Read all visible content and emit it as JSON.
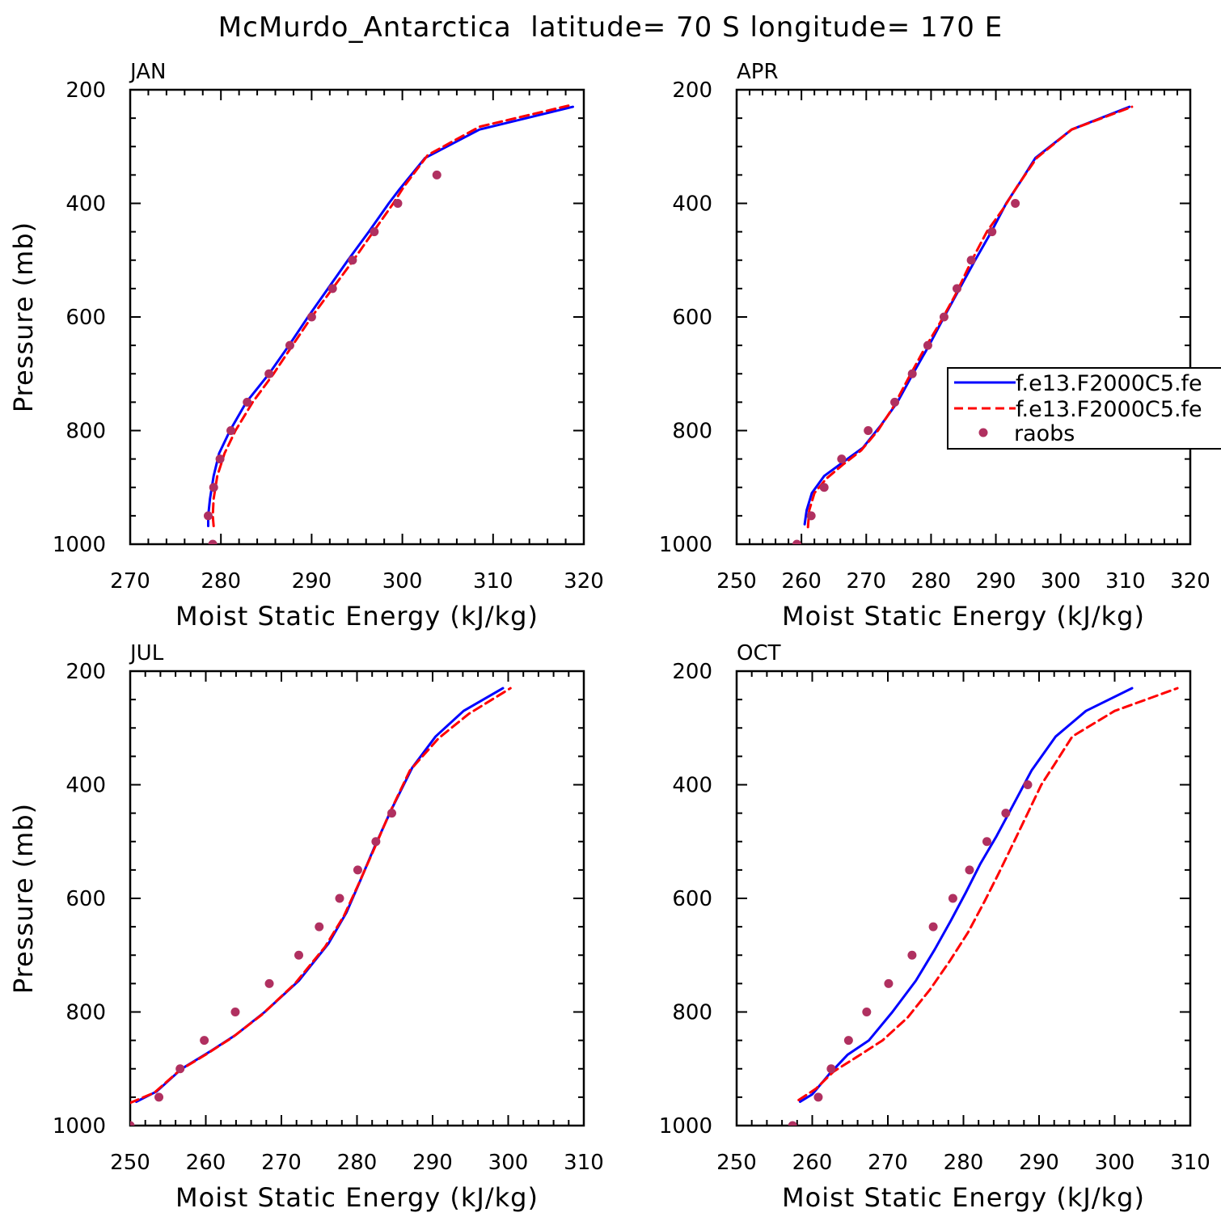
{
  "title": "McMurdo_Antarctica  latitude= 70 S longitude= 170 E",
  "colors": {
    "series1": "#0000ff",
    "series2": "#ff0000",
    "obs": "#b03060",
    "axis": "#000000"
  },
  "legend": {
    "entries": [
      "f.e13.F2000C5.fe",
      "f.e13.F2000C5.fe",
      "raobs"
    ]
  },
  "chart_data": [
    {
      "type": "line",
      "panel": "JAN",
      "xlabel": "Moist Static Energy (kJ/kg)",
      "ylabel": "Pressure (mb)",
      "xlim": [
        270,
        320
      ],
      "ylim": [
        1000,
        200
      ],
      "xticks": [
        270,
        280,
        290,
        300,
        310,
        320
      ],
      "yticks": [
        200,
        400,
        600,
        800,
        1000
      ],
      "series": [
        {
          "name": "f.e13.F2000C5.fe (blue)",
          "style": "solid",
          "points": [
            [
              278.6,
              968
            ],
            [
              278.6,
              950
            ],
            [
              278.8,
              920
            ],
            [
              279.2,
              880
            ],
            [
              279.8,
              840
            ],
            [
              281.0,
              800
            ],
            [
              282.8,
              750
            ],
            [
              285.3,
              700
            ],
            [
              287.5,
              650
            ],
            [
              289.6,
              600
            ],
            [
              291.8,
              550
            ],
            [
              294.0,
              500
            ],
            [
              296.3,
              450
            ],
            [
              298.5,
              400
            ],
            [
              299.7,
              375
            ],
            [
              302.5,
              320
            ],
            [
              308.5,
              270
            ],
            [
              318.8,
              230
            ]
          ]
        },
        {
          "name": "f.e13.F2000C5.fe (red)",
          "style": "dashed",
          "points": [
            [
              279.2,
              968
            ],
            [
              279.1,
              950
            ],
            [
              279.2,
              920
            ],
            [
              279.6,
              880
            ],
            [
              280.4,
              840
            ],
            [
              281.6,
              800
            ],
            [
              283.5,
              750
            ],
            [
              285.8,
              700
            ],
            [
              287.9,
              650
            ],
            [
              290.0,
              600
            ],
            [
              292.3,
              550
            ],
            [
              294.6,
              500
            ],
            [
              296.8,
              450
            ],
            [
              299.0,
              400
            ],
            [
              300.2,
              370
            ],
            [
              302.8,
              315
            ],
            [
              308.5,
              265
            ],
            [
              318.3,
              228
            ]
          ]
        },
        {
          "name": "raobs",
          "style": "markers",
          "points": [
            [
              279.1,
              1000
            ],
            [
              278.6,
              950
            ],
            [
              279.2,
              900
            ],
            [
              279.9,
              850
            ],
            [
              281.1,
              800
            ],
            [
              282.9,
              750
            ],
            [
              285.3,
              700
            ],
            [
              287.6,
              650
            ],
            [
              290.0,
              600
            ],
            [
              292.3,
              550
            ],
            [
              294.5,
              500
            ],
            [
              296.9,
              450
            ],
            [
              299.5,
              400
            ],
            [
              303.8,
              350
            ]
          ]
        }
      ]
    },
    {
      "type": "line",
      "panel": "APR",
      "xlabel": "Moist Static Energy (kJ/kg)",
      "ylabel": "",
      "xlim": [
        250,
        320
      ],
      "ylim": [
        1000,
        200
      ],
      "xticks": [
        250,
        260,
        270,
        280,
        290,
        300,
        310,
        320
      ],
      "yticks": [
        200,
        400,
        600,
        800,
        1000
      ],
      "series": [
        {
          "name": "f.e13.F2000C5.fe (blue)",
          "style": "solid",
          "points": [
            [
              260.5,
              965
            ],
            [
              260.8,
              940
            ],
            [
              261.6,
              910
            ],
            [
              263.5,
              880
            ],
            [
              266.5,
              855
            ],
            [
              269.5,
              830
            ],
            [
              272.3,
              790
            ],
            [
              274.8,
              750
            ],
            [
              277.2,
              700
            ],
            [
              279.7,
              650
            ],
            [
              282.0,
              600
            ],
            [
              284.4,
              550
            ],
            [
              286.8,
              500
            ],
            [
              289.3,
              450
            ],
            [
              291.6,
              400
            ],
            [
              293.9,
              360
            ],
            [
              296.1,
              320
            ],
            [
              301.7,
              270
            ],
            [
              310.6,
              230
            ]
          ]
        },
        {
          "name": "f.e13.F2000C5.fe (red)",
          "style": "dashed",
          "points": [
            [
              261.0,
              970
            ],
            [
              261.2,
              940
            ],
            [
              262.0,
              910
            ],
            [
              263.8,
              885
            ],
            [
              266.4,
              860
            ],
            [
              269.2,
              835
            ],
            [
              271.8,
              800
            ],
            [
              274.1,
              760
            ],
            [
              276.4,
              710
            ],
            [
              278.8,
              660
            ],
            [
              281.4,
              610
            ],
            [
              283.8,
              560
            ],
            [
              286.3,
              500
            ],
            [
              288.6,
              450
            ],
            [
              291.1,
              410
            ],
            [
              293.3,
              370
            ],
            [
              296.3,
              320
            ],
            [
              301.7,
              270
            ],
            [
              311.0,
              230
            ]
          ]
        },
        {
          "name": "raobs",
          "style": "markers",
          "points": [
            [
              259.3,
              1000
            ],
            [
              261.5,
              950
            ],
            [
              263.5,
              900
            ],
            [
              266.2,
              850
            ],
            [
              270.3,
              800
            ],
            [
              274.4,
              750
            ],
            [
              277.1,
              700
            ],
            [
              279.5,
              650
            ],
            [
              282.0,
              600
            ],
            [
              284.0,
              550
            ],
            [
              286.2,
              500
            ],
            [
              289.4,
              450
            ],
            [
              293.0,
              400
            ]
          ]
        }
      ]
    },
    {
      "type": "line",
      "panel": "JUL",
      "xlabel": "Moist Static Energy (kJ/kg)",
      "ylabel": "Pressure (mb)",
      "xlim": [
        250,
        310
      ],
      "ylim": [
        1000,
        200
      ],
      "xticks": [
        250,
        260,
        270,
        280,
        290,
        300,
        310
      ],
      "yticks": [
        200,
        400,
        600,
        800,
        1000
      ],
      "series": [
        {
          "name": "f.e13.F2000C5.fe (blue)",
          "style": "solid",
          "points": [
            [
              250.8,
              958
            ],
            [
              253.5,
              940
            ],
            [
              256.8,
              900
            ],
            [
              260.5,
              870
            ],
            [
              264.0,
              840
            ],
            [
              267.8,
              800
            ],
            [
              272.3,
              745
            ],
            [
              276.2,
              680
            ],
            [
              278.6,
              625
            ],
            [
              280.4,
              570
            ],
            [
              282.3,
              510
            ],
            [
              284.5,
              445
            ],
            [
              287.3,
              370
            ],
            [
              290.4,
              315
            ],
            [
              294.1,
              270
            ],
            [
              299.3,
              230
            ]
          ]
        },
        {
          "name": "f.e13.F2000C5.fe (red)",
          "style": "dashed",
          "points": [
            [
              250.0,
              960
            ],
            [
              253.2,
              942
            ],
            [
              256.5,
              903
            ],
            [
              260.0,
              875
            ],
            [
              263.5,
              845
            ],
            [
              267.4,
              805
            ],
            [
              271.8,
              750
            ],
            [
              275.8,
              685
            ],
            [
              278.3,
              630
            ],
            [
              280.2,
              575
            ],
            [
              282.2,
              515
            ],
            [
              284.3,
              450
            ],
            [
              287.0,
              375
            ],
            [
              290.8,
              318
            ],
            [
              294.8,
              275
            ],
            [
              300.3,
              230
            ]
          ]
        },
        {
          "name": "raobs",
          "style": "markers",
          "points": [
            [
              250.0,
              1000
            ],
            [
              253.8,
              950
            ],
            [
              256.6,
              900
            ],
            [
              259.8,
              850
            ],
            [
              263.9,
              800
            ],
            [
              268.4,
              750
            ],
            [
              272.3,
              700
            ],
            [
              275.0,
              650
            ],
            [
              277.7,
              600
            ],
            [
              280.1,
              550
            ],
            [
              282.5,
              500
            ],
            [
              284.6,
              450
            ]
          ]
        }
      ]
    },
    {
      "type": "line",
      "panel": "OCT",
      "xlabel": "Moist Static Energy (kJ/kg)",
      "ylabel": "",
      "xlim": [
        250,
        310
      ],
      "ylim": [
        1000,
        200
      ],
      "xticks": [
        250,
        260,
        270,
        280,
        290,
        300,
        310
      ],
      "yticks": [
        200,
        400,
        600,
        800,
        1000
      ],
      "series": [
        {
          "name": "f.e13.F2000C5.fe (blue)",
          "style": "solid",
          "points": [
            [
              258.4,
              958
            ],
            [
              260.0,
              945
            ],
            [
              262.2,
              910
            ],
            [
              264.7,
              875
            ],
            [
              267.5,
              850
            ],
            [
              270.6,
              800
            ],
            [
              273.7,
              745
            ],
            [
              276.2,
              690
            ],
            [
              278.3,
              640
            ],
            [
              280.3,
              590
            ],
            [
              282.2,
              540
            ],
            [
              284.4,
              490
            ],
            [
              286.8,
              430
            ],
            [
              289.0,
              375
            ],
            [
              292.2,
              315
            ],
            [
              296.2,
              270
            ],
            [
              302.3,
              230
            ]
          ]
        },
        {
          "name": "f.e13.F2000C5.fe (red)",
          "style": "dashed",
          "points": [
            [
              258.2,
              955
            ],
            [
              260.5,
              935
            ],
            [
              262.8,
              905
            ],
            [
              265.8,
              880
            ],
            [
              269.3,
              850
            ],
            [
              272.6,
              810
            ],
            [
              275.6,
              760
            ],
            [
              278.2,
              710
            ],
            [
              280.6,
              660
            ],
            [
              282.8,
              605
            ],
            [
              284.7,
              555
            ],
            [
              286.7,
              500
            ],
            [
              288.5,
              450
            ],
            [
              290.3,
              400
            ],
            [
              292.0,
              365
            ],
            [
              294.4,
              315
            ],
            [
              300.0,
              270
            ],
            [
              308.3,
              230
            ]
          ]
        },
        {
          "name": "raobs",
          "style": "markers",
          "points": [
            [
              257.4,
              1000
            ],
            [
              260.8,
              950
            ],
            [
              262.5,
              900
            ],
            [
              264.8,
              850
            ],
            [
              267.2,
              800
            ],
            [
              270.1,
              750
            ],
            [
              273.2,
              700
            ],
            [
              276.0,
              650
            ],
            [
              278.6,
              600
            ],
            [
              280.8,
              550
            ],
            [
              283.1,
              500
            ],
            [
              285.6,
              450
            ],
            [
              288.5,
              400
            ]
          ]
        }
      ]
    }
  ]
}
